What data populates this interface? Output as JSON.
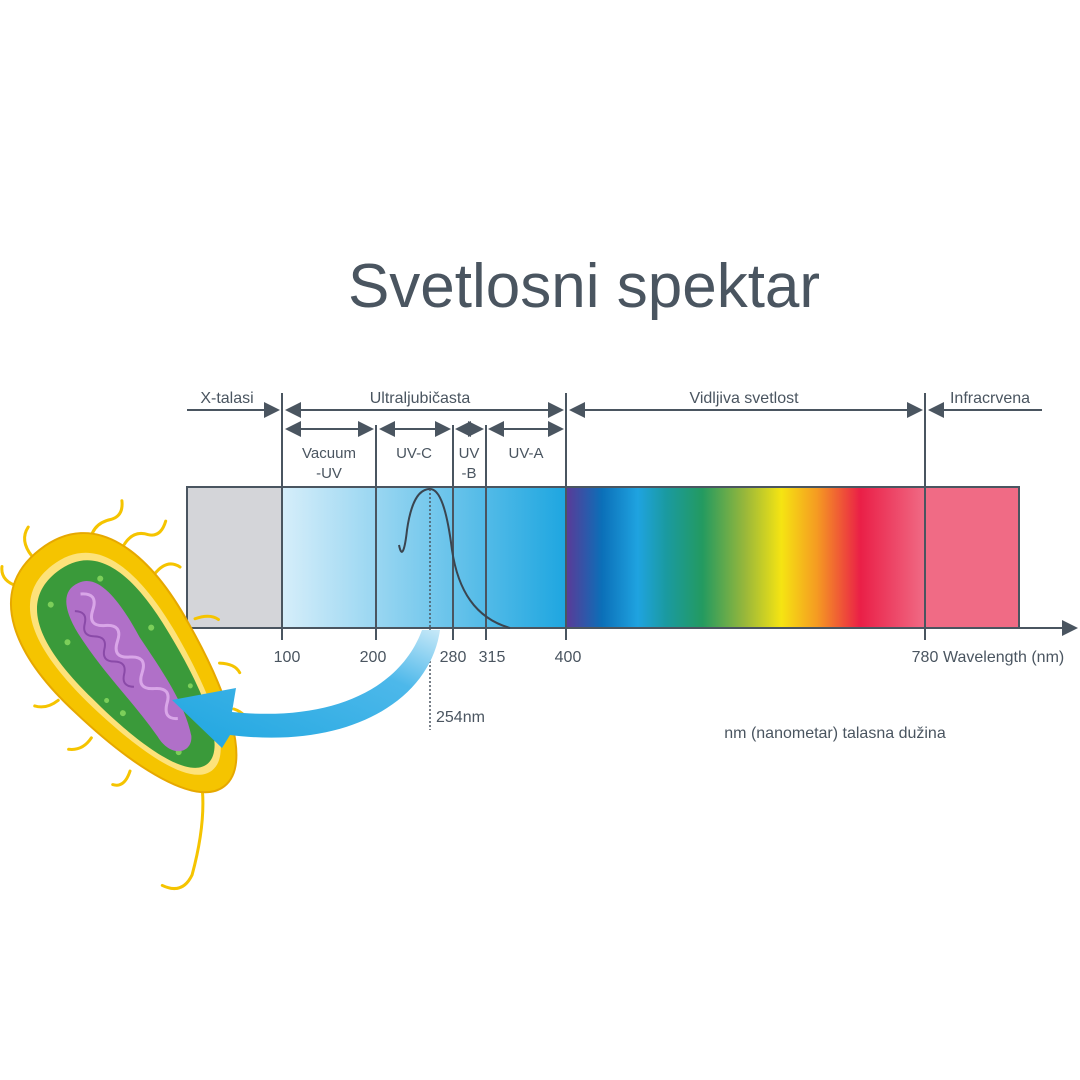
{
  "title": "Svetlosni spektar",
  "regions": [
    {
      "label": "X-talasi"
    },
    {
      "label": "Ultraljubičasta"
    },
    {
      "label": "Vidljiva svetlost"
    },
    {
      "label": "Infracrvena"
    }
  ],
  "uv_subregions": [
    {
      "label_line1": "Vacuum",
      "label_line2": "-UV"
    },
    {
      "label_line1": "UV-C",
      "label_line2": ""
    },
    {
      "label_line1": "UV",
      "label_line2": "-B"
    },
    {
      "label_line1": "UV-A",
      "label_line2": ""
    }
  ],
  "ticks": [
    "100",
    "200",
    "280",
    "315",
    "400",
    "780"
  ],
  "axis_label": "Wavelength (nm)",
  "peak_label": "254nm",
  "footnote": "nm (nanometar) talasna dužina",
  "colors": {
    "text": "#3d4f5c",
    "xray": "#d4d5d9",
    "uv_light": "#d6eefa",
    "uv_dark": "#1ea6e0",
    "infrared": "#f06b85",
    "arrow": "#1ea6e0",
    "bacterium_wall": "#f5c400",
    "bacterium_cytoplasm": "#3a9a3a",
    "bacterium_dna": "#b070c8"
  },
  "icons": {
    "bacterium": "bacterium-illustration",
    "uv-arrow": "curved-arrow"
  }
}
